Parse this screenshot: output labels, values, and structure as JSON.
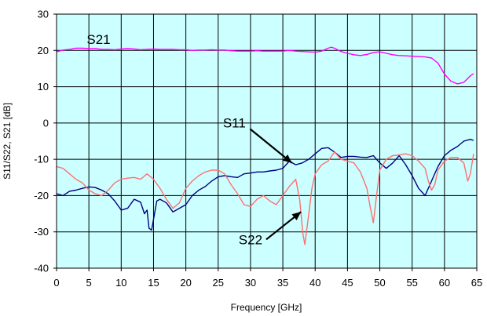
{
  "chart_data": {
    "type": "line",
    "title": "",
    "xlabel": "Frequency [GHz]",
    "ylabel": "S11/S22, S21 [dB]",
    "xlim": [
      0,
      65
    ],
    "ylim": [
      -40,
      30
    ],
    "x_ticks": [
      0,
      5,
      10,
      15,
      20,
      25,
      30,
      35,
      40,
      45,
      50,
      55,
      60,
      65
    ],
    "y_ticks": [
      -40,
      -30,
      -20,
      -10,
      0,
      10,
      20,
      30
    ],
    "grid": true,
    "plot_background": "#ccffff",
    "grid_color": "#000000",
    "annotations": [
      {
        "text": "S21",
        "x": 6.5,
        "y": 21.8,
        "arrow": false
      },
      {
        "text": "S11",
        "x": 27.5,
        "y": -1.2,
        "arrow": true,
        "arrow_to": [
          36.4,
          -11.0
        ]
      },
      {
        "text": "S22",
        "x": 30.0,
        "y": -33.4,
        "arrow": true,
        "arrow_to": [
          37.8,
          -24.5
        ]
      }
    ],
    "series": [
      {
        "name": "S21",
        "color": "#ff00ff",
        "points": [
          [
            0,
            19.6
          ],
          [
            1,
            20.1
          ],
          [
            2,
            20.3
          ],
          [
            3,
            20.6
          ],
          [
            4,
            20.6
          ],
          [
            5,
            20.5
          ],
          [
            6,
            20.5
          ],
          [
            7,
            20.3
          ],
          [
            8,
            20.3
          ],
          [
            9,
            20.2
          ],
          [
            10,
            20.4
          ],
          [
            11,
            20.5
          ],
          [
            12,
            20.4
          ],
          [
            13,
            20.2
          ],
          [
            14,
            20.3
          ],
          [
            15,
            20.4
          ],
          [
            16,
            20.3
          ],
          [
            17,
            20.3
          ],
          [
            18,
            20.3
          ],
          [
            19,
            20.2
          ],
          [
            20,
            20.2
          ],
          [
            21,
            20.0
          ],
          [
            22,
            20.1
          ],
          [
            23,
            20.1
          ],
          [
            24,
            20.2
          ],
          [
            25,
            20.1
          ],
          [
            26,
            20.1
          ],
          [
            27,
            19.9
          ],
          [
            28,
            19.8
          ],
          [
            29,
            19.8
          ],
          [
            30,
            19.8
          ],
          [
            31,
            19.9
          ],
          [
            32,
            19.8
          ],
          [
            33,
            19.8
          ],
          [
            34,
            19.8
          ],
          [
            35,
            19.8
          ],
          [
            36,
            20.0
          ],
          [
            37,
            19.8
          ],
          [
            38,
            19.7
          ],
          [
            39,
            19.6
          ],
          [
            40,
            19.5
          ],
          [
            41,
            19.8
          ],
          [
            42,
            20.6
          ],
          [
            42.5,
            20.9
          ],
          [
            43,
            20.6
          ],
          [
            44,
            19.7
          ],
          [
            45,
            19.2
          ],
          [
            46,
            18.8
          ],
          [
            47,
            18.6
          ],
          [
            48,
            18.9
          ],
          [
            49,
            19.4
          ],
          [
            50,
            19.6
          ],
          [
            51,
            19.2
          ],
          [
            52,
            18.8
          ],
          [
            53,
            18.6
          ],
          [
            54,
            18.5
          ],
          [
            55,
            18.4
          ],
          [
            56,
            18.3
          ],
          [
            57,
            18.2
          ],
          [
            58,
            17.9
          ],
          [
            59,
            16.5
          ],
          [
            60,
            13.5
          ],
          [
            61,
            11.5
          ],
          [
            62,
            10.8
          ],
          [
            63,
            11.2
          ],
          [
            64,
            13.0
          ],
          [
            64.5,
            13.6
          ]
        ]
      },
      {
        "name": "S11",
        "color": "#000080",
        "points": [
          [
            0,
            -19.5
          ],
          [
            1,
            -20.0
          ],
          [
            2,
            -18.8
          ],
          [
            3,
            -18.5
          ],
          [
            4,
            -18.0
          ],
          [
            5,
            -17.6
          ],
          [
            6,
            -17.8
          ],
          [
            7,
            -18.5
          ],
          [
            8,
            -19.5
          ],
          [
            9,
            -21.5
          ],
          [
            10,
            -24.0
          ],
          [
            11,
            -23.5
          ],
          [
            12,
            -21.0
          ],
          [
            13,
            -21.8
          ],
          [
            13.6,
            -25.0
          ],
          [
            14,
            -24.0
          ],
          [
            14.3,
            -29.0
          ],
          [
            14.7,
            -29.5
          ],
          [
            15,
            -26.5
          ],
          [
            15.5,
            -21.5
          ],
          [
            16,
            -21.0
          ],
          [
            17,
            -22.0
          ],
          [
            18,
            -24.5
          ],
          [
            19,
            -23.5
          ],
          [
            20,
            -22.5
          ],
          [
            21,
            -20.0
          ],
          [
            22,
            -18.5
          ],
          [
            23,
            -17.5
          ],
          [
            24,
            -16.0
          ],
          [
            25,
            -14.8
          ],
          [
            26,
            -14.5
          ],
          [
            27,
            -14.8
          ],
          [
            28,
            -15.0
          ],
          [
            29,
            -14.0
          ],
          [
            30,
            -13.8
          ],
          [
            31,
            -13.5
          ],
          [
            32,
            -13.5
          ],
          [
            33,
            -13.2
          ],
          [
            34,
            -13.0
          ],
          [
            35,
            -12.5
          ],
          [
            36,
            -10.5
          ],
          [
            37,
            -11.5
          ],
          [
            38,
            -11.0
          ],
          [
            39,
            -10.0
          ],
          [
            40,
            -8.5
          ],
          [
            41,
            -7.0
          ],
          [
            42,
            -6.8
          ],
          [
            43,
            -8.0
          ],
          [
            44,
            -9.5
          ],
          [
            45,
            -9.2
          ],
          [
            46,
            -9.2
          ],
          [
            47,
            -9.4
          ],
          [
            48,
            -9.5
          ],
          [
            49,
            -9.0
          ],
          [
            50,
            -11.0
          ],
          [
            51,
            -12.5
          ],
          [
            52,
            -11.0
          ],
          [
            53,
            -9.0
          ],
          [
            54,
            -11.5
          ],
          [
            55,
            -14.5
          ],
          [
            56,
            -18.0
          ],
          [
            57,
            -20.0
          ],
          [
            58,
            -16.0
          ],
          [
            59,
            -12.0
          ],
          [
            60,
            -9.0
          ],
          [
            61,
            -7.5
          ],
          [
            62,
            -6.5
          ],
          [
            63,
            -5.0
          ],
          [
            64,
            -4.5
          ],
          [
            64.5,
            -4.8
          ]
        ]
      },
      {
        "name": "S22",
        "color": "#ff7070",
        "points": [
          [
            0,
            -12.0
          ],
          [
            1,
            -12.5
          ],
          [
            2,
            -14.0
          ],
          [
            3,
            -15.5
          ],
          [
            4,
            -16.5
          ],
          [
            5,
            -18.5
          ],
          [
            6,
            -19.5
          ],
          [
            7,
            -20.0
          ],
          [
            8,
            -18.5
          ],
          [
            9,
            -16.5
          ],
          [
            10,
            -15.5
          ],
          [
            11,
            -15.2
          ],
          [
            12,
            -15.0
          ],
          [
            13,
            -15.5
          ],
          [
            14,
            -14.0
          ],
          [
            15,
            -15.5
          ],
          [
            16,
            -18.0
          ],
          [
            17,
            -21.0
          ],
          [
            18,
            -23.5
          ],
          [
            19,
            -22.0
          ],
          [
            20,
            -18.0
          ],
          [
            21,
            -16.0
          ],
          [
            22,
            -14.5
          ],
          [
            23,
            -13.5
          ],
          [
            24,
            -13.0
          ],
          [
            25,
            -13.0
          ],
          [
            26,
            -14.0
          ],
          [
            27,
            -17.0
          ],
          [
            28,
            -19.5
          ],
          [
            29,
            -22.5
          ],
          [
            30,
            -23.0
          ],
          [
            31,
            -21.0
          ],
          [
            32,
            -20.0
          ],
          [
            33,
            -21.5
          ],
          [
            34,
            -22.5
          ],
          [
            35,
            -20.0
          ],
          [
            36,
            -17.5
          ],
          [
            37,
            -15.5
          ],
          [
            37.6,
            -21.0
          ],
          [
            38.1,
            -30.5
          ],
          [
            38.4,
            -33.5
          ],
          [
            38.8,
            -28.0
          ],
          [
            39.5,
            -18.0
          ],
          [
            40,
            -14.0
          ],
          [
            41,
            -11.5
          ],
          [
            42,
            -10.5
          ],
          [
            43,
            -8.0
          ],
          [
            44,
            -10.0
          ],
          [
            45,
            -10.5
          ],
          [
            46,
            -11.0
          ],
          [
            47,
            -13.5
          ],
          [
            48,
            -18.0
          ],
          [
            48.5,
            -23.0
          ],
          [
            49,
            -27.5
          ],
          [
            49.5,
            -20.0
          ],
          [
            50,
            -13.0
          ],
          [
            51,
            -10.0
          ],
          [
            52,
            -9.0
          ],
          [
            53,
            -8.8
          ],
          [
            54,
            -8.5
          ],
          [
            55,
            -9.0
          ],
          [
            56,
            -10.5
          ],
          [
            57,
            -12.5
          ],
          [
            57.5,
            -16.0
          ],
          [
            58,
            -18.5
          ],
          [
            58.5,
            -17.0
          ],
          [
            59,
            -13.0
          ],
          [
            60,
            -10.5
          ],
          [
            61,
            -9.5
          ],
          [
            62,
            -9.5
          ],
          [
            63,
            -11.0
          ],
          [
            63.6,
            -16.0
          ],
          [
            64,
            -14.0
          ],
          [
            64.5,
            -8.5
          ]
        ]
      }
    ]
  }
}
